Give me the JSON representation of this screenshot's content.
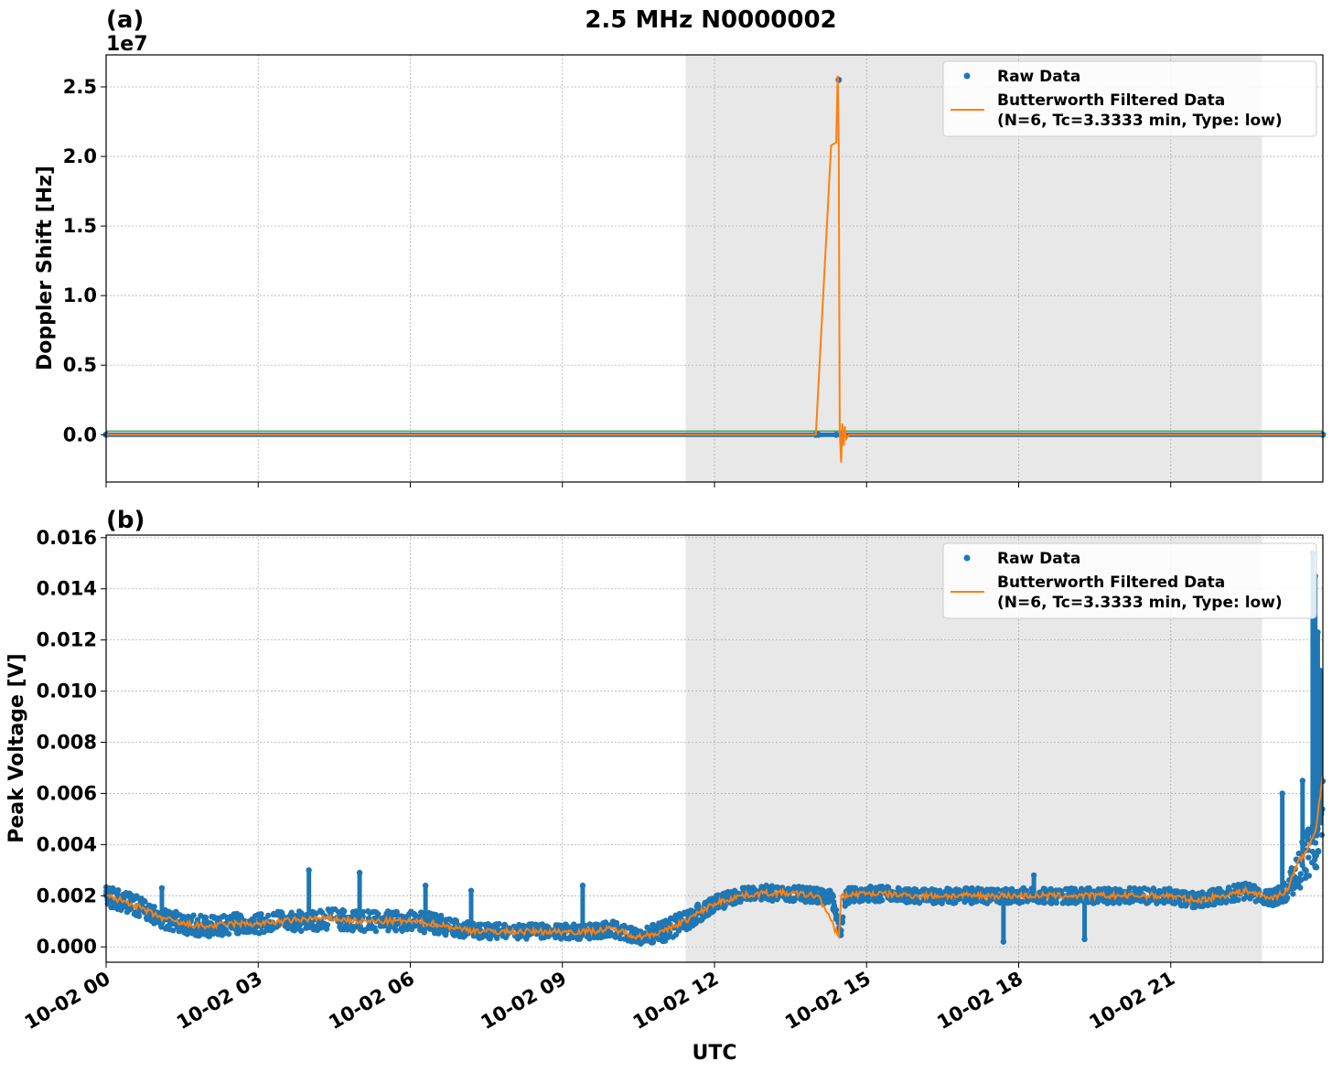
{
  "figure": {
    "title": "2.5 MHz N0000002",
    "xlabel": "UTC"
  },
  "colors": {
    "raw": "#1f77b4",
    "filtered": "#ff7f0e",
    "shade": "#e8e8e8",
    "grid": "#b0b0b0"
  },
  "x_axis": {
    "unit": "hours since 10-02 00:00 UTC",
    "range": [
      0,
      24
    ],
    "ticks": [
      {
        "value": 0,
        "label": "10-02 00"
      },
      {
        "value": 3,
        "label": "10-02 03"
      },
      {
        "value": 6,
        "label": "10-02 06"
      },
      {
        "value": 9,
        "label": "10-02 09"
      },
      {
        "value": 12,
        "label": "10-02 12"
      },
      {
        "value": 15,
        "label": "10-02 15"
      },
      {
        "value": 18,
        "label": "10-02 18"
      },
      {
        "value": 21,
        "label": "10-02 21"
      }
    ]
  },
  "legend": {
    "placement": "top-right",
    "raw_label": "Raw Data",
    "filtered_label_1": "Butterworth Filtered Data",
    "filtered_label_2": "(N=6, Tc=3.3333 min, Type: low)"
  },
  "chart_data": [
    {
      "type": "scatter",
      "panel_label": "(a)",
      "ylabel": "Doppler Shift [Hz]",
      "offset_text": "1e7",
      "ylim": [
        -3.4,
        27.3
      ],
      "yticks": [
        {
          "value": 0.0,
          "label": "0.0"
        },
        {
          "value": 5.0,
          "label": "0.5"
        },
        {
          "value": 10.0,
          "label": "1.0"
        },
        {
          "value": 15.0,
          "label": "1.5"
        },
        {
          "value": 20.0,
          "label": "2.0"
        },
        {
          "value": 25.0,
          "label": "2.5"
        }
      ],
      "shaded_range": [
        11.43,
        22.8
      ],
      "grid": true,
      "series": [
        {
          "name": "Raw Data",
          "style": "markers",
          "x": [
            0,
            14.0,
            14.05,
            14.4,
            14.45,
            14.5,
            24
          ],
          "y": [
            0.0,
            0.0,
            0.0,
            0.0,
            25.5,
            0.0,
            0.0
          ]
        },
        {
          "name": "Butterworth Filtered Data",
          "style": "line",
          "x": [
            0,
            14.0,
            14.3,
            14.4,
            14.43,
            14.45,
            14.47,
            14.5,
            14.52,
            14.55,
            14.57,
            14.6,
            14.65,
            24
          ],
          "y": [
            0.0,
            0.0,
            20.8,
            21.0,
            25.8,
            21.0,
            0.2,
            -2.0,
            0.8,
            -0.8,
            0.6,
            -0.3,
            0.0,
            0.0
          ]
        }
      ]
    },
    {
      "type": "scatter",
      "panel_label": "(b)",
      "ylabel": "Peak Voltage [V]",
      "ylim": [
        -0.0006,
        0.0161
      ],
      "yticks": [
        {
          "value": 0.0,
          "label": "0.000"
        },
        {
          "value": 0.002,
          "label": "0.002"
        },
        {
          "value": 0.004,
          "label": "0.004"
        },
        {
          "value": 0.006,
          "label": "0.006"
        },
        {
          "value": 0.008,
          "label": "0.008"
        },
        {
          "value": 0.01,
          "label": "0.010"
        },
        {
          "value": 0.012,
          "label": "0.012"
        },
        {
          "value": 0.014,
          "label": "0.014"
        },
        {
          "value": 0.016,
          "label": "0.016"
        }
      ],
      "shaded_range": [
        11.43,
        22.8
      ],
      "grid": true,
      "series": [
        {
          "name": "Raw Data",
          "style": "markers-band",
          "x": [
            0,
            0.5,
            1.0,
            1.5,
            2.0,
            2.5,
            3.0,
            3.5,
            4.0,
            4.5,
            5.0,
            5.5,
            6.0,
            6.5,
            7.0,
            7.5,
            8.0,
            8.5,
            9.0,
            9.5,
            10.0,
            10.5,
            11.0,
            11.5,
            12.0,
            12.5,
            13.0,
            13.5,
            14.0,
            14.3,
            14.5,
            14.6,
            15.0,
            16.0,
            17.0,
            18.0,
            19.0,
            20.0,
            21.0,
            21.5,
            22.0,
            22.5,
            22.8,
            23.0,
            23.3,
            23.5,
            23.7,
            24.0
          ],
          "y": [
            0.002,
            0.0017,
            0.0012,
            0.0009,
            0.0008,
            0.0009,
            0.0009,
            0.001,
            0.001,
            0.0011,
            0.001,
            0.001,
            0.001,
            0.0009,
            0.0007,
            0.0006,
            0.0006,
            0.0006,
            0.0006,
            0.0006,
            0.0007,
            0.0004,
            0.0006,
            0.0011,
            0.0017,
            0.002,
            0.0021,
            0.0021,
            0.002,
            0.002,
            0.0005,
            0.002,
            0.0021,
            0.002,
            0.002,
            0.002,
            0.002,
            0.002,
            0.002,
            0.0018,
            0.002,
            0.0022,
            0.002,
            0.0019,
            0.0022,
            0.003,
            0.0035,
            0.005
          ],
          "spread": [
            0.0004,
            0.0004,
            0.0004,
            0.0004,
            0.0004,
            0.0004,
            0.0004,
            0.0004,
            0.0004,
            0.0004,
            0.0004,
            0.0004,
            0.0004,
            0.0004,
            0.0003,
            0.0003,
            0.0003,
            0.0003,
            0.0003,
            0.0003,
            0.0003,
            0.0003,
            0.0004,
            0.0004,
            0.0003,
            0.0003,
            0.0003,
            0.0003,
            0.0003,
            0.0003,
            0.0002,
            0.0003,
            0.0003,
            0.0003,
            0.0003,
            0.0003,
            0.0003,
            0.0003,
            0.0003,
            0.0003,
            0.0003,
            0.0003,
            0.0003,
            0.0003,
            0.0004,
            0.0008,
            0.0012,
            0.0015
          ],
          "outliers": [
            {
              "x": 4.0,
              "y": 0.003
            },
            {
              "x": 5.0,
              "y": 0.0029
            },
            {
              "x": 1.1,
              "y": 0.0023
            },
            {
              "x": 6.3,
              "y": 0.0024
            },
            {
              "x": 7.2,
              "y": 0.0022
            },
            {
              "x": 9.4,
              "y": 0.0024
            },
            {
              "x": 17.7,
              "y": 0.0002
            },
            {
              "x": 19.3,
              "y": 0.0003
            },
            {
              "x": 18.3,
              "y": 0.0028
            },
            {
              "x": 23.8,
              "y": 0.0154
            },
            {
              "x": 23.85,
              "y": 0.0145
            },
            {
              "x": 23.9,
              "y": 0.0123
            },
            {
              "x": 23.95,
              "y": 0.0108
            },
            {
              "x": 23.6,
              "y": 0.0065
            },
            {
              "x": 23.2,
              "y": 0.006
            }
          ]
        },
        {
          "name": "Butterworth Filtered Data",
          "style": "line",
          "x": [
            0,
            0.5,
            1.0,
            1.5,
            2.0,
            2.5,
            3.0,
            3.5,
            4.0,
            4.5,
            5.0,
            5.5,
            6.0,
            6.5,
            7.0,
            7.5,
            8.0,
            8.5,
            9.0,
            9.5,
            10.0,
            10.5,
            11.0,
            11.5,
            12.0,
            12.5,
            13.0,
            13.5,
            14.0,
            14.05,
            14.45,
            14.5,
            14.55,
            15.0,
            16.0,
            17.0,
            18.0,
            19.0,
            20.0,
            21.0,
            21.5,
            22.0,
            22.5,
            22.8,
            23.0,
            23.3,
            23.5,
            23.7,
            23.85,
            24.0
          ],
          "y": [
            0.002,
            0.0017,
            0.0012,
            0.0009,
            0.0008,
            0.0009,
            0.0009,
            0.001,
            0.0011,
            0.0011,
            0.001,
            0.001,
            0.001,
            0.0009,
            0.0007,
            0.0006,
            0.0006,
            0.0006,
            0.0006,
            0.0006,
            0.0007,
            0.0004,
            0.0006,
            0.0011,
            0.0017,
            0.002,
            0.0021,
            0.0021,
            0.002,
            0.002,
            0.0004,
            0.002,
            0.002,
            0.0021,
            0.002,
            0.002,
            0.002,
            0.002,
            0.002,
            0.002,
            0.0018,
            0.002,
            0.0022,
            0.002,
            0.0019,
            0.0022,
            0.0033,
            0.0038,
            0.0045,
            0.0067
          ]
        }
      ]
    }
  ]
}
